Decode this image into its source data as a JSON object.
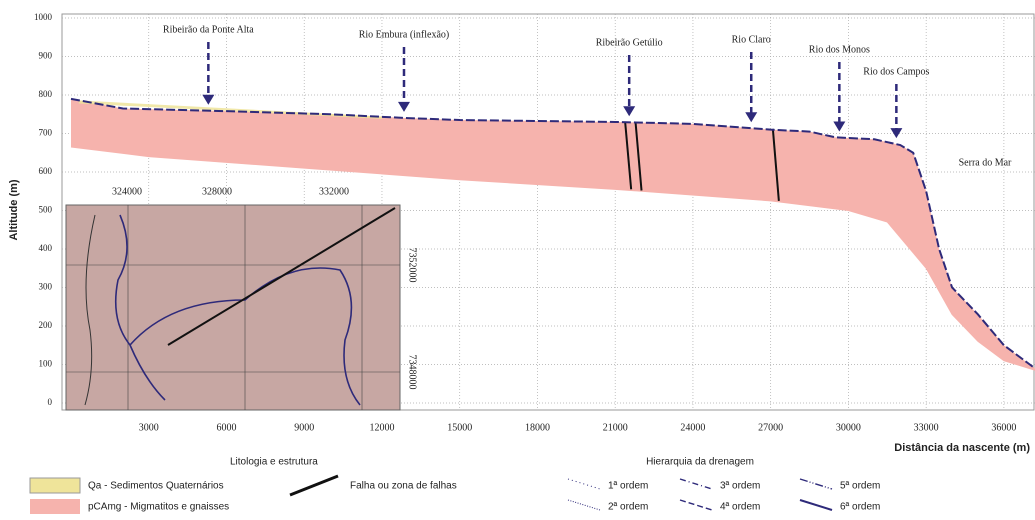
{
  "chart_data": {
    "type": "profile",
    "y_label": "Altitude (m)",
    "x_label": "Distância da nascente (m)",
    "xlim": [
      0,
      37200
    ],
    "ylim": [
      0,
      1000
    ],
    "xticks": [
      3000,
      6000,
      9000,
      12000,
      15000,
      18000,
      21000,
      24000,
      27000,
      30000,
      33000,
      36000
    ],
    "yticks": [
      0,
      100,
      200,
      300,
      400,
      500,
      600,
      700,
      800,
      900,
      1000
    ],
    "grid": true,
    "surface": {
      "color": "#2e2a7a",
      "x": [
        0,
        2000,
        6000,
        10000,
        13000,
        15000,
        21000,
        24000,
        27000,
        28500,
        29500,
        31000,
        32000,
        32500,
        33000,
        33500,
        34000,
        35000,
        36000,
        37000,
        37200
      ],
      "values": [
        790,
        765,
        758,
        750,
        740,
        735,
        730,
        725,
        710,
        705,
        690,
        685,
        670,
        650,
        550,
        400,
        300,
        230,
        150,
        100,
        90
      ]
    },
    "base": {
      "color": "#f6b3ad",
      "x": [
        0,
        3000,
        9000,
        15000,
        21000,
        27000,
        30000,
        31500,
        33000,
        34000,
        35000,
        36000,
        37200
      ],
      "values": [
        665,
        640,
        610,
        580,
        555,
        525,
        500,
        470,
        350,
        230,
        160,
        110,
        85
      ]
    },
    "annotations": [
      {
        "text": "Ribeirão da Ponte Alta",
        "x": 5300
      },
      {
        "text": "Rio Embura (inflexão)",
        "x": 12850
      },
      {
        "text": "Ribeirão Getúlio",
        "x": 21540
      },
      {
        "text": "Rio Claro",
        "x": 26250
      },
      {
        "text": "Rio dos Monos",
        "x": 29650
      },
      {
        "text": "Rio dos Campos",
        "x": 31850
      }
    ],
    "region_label": "Serra do Mar",
    "inset": {
      "x_labels": [
        "324000",
        "328000",
        "332000"
      ],
      "y_labels": [
        "7352000",
        "7348000"
      ]
    },
    "legend": {
      "lithology_title": "Litologia e estrutura",
      "qa": "Qa - Sedimentos Quaternários",
      "pcamg": "pCAmg - Migmatitos e gnaisses",
      "fault": "Falha ou zona de falhas",
      "drainage_title": "Hierarquia da drenagem",
      "orders": [
        "1ª ordem",
        "2ª ordem",
        "3ª ordem",
        "4ª ordem",
        "5ª ordem",
        "6ª ordem"
      ]
    }
  }
}
